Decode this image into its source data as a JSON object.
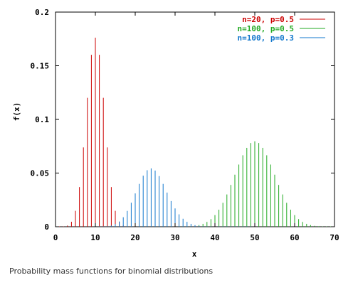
{
  "caption": "Probability mass functions for binomial distributions",
  "chart_data": {
    "type": "bar",
    "xlabel": "x",
    "ylabel": "f(x)",
    "xlim": [
      0,
      70
    ],
    "ylim": [
      0,
      0.2
    ],
    "x_ticks": [
      0,
      10,
      20,
      30,
      40,
      50,
      60,
      70
    ],
    "x_tick_labels": [
      "0",
      "10",
      "20",
      "30",
      "40",
      "50",
      "60",
      "70"
    ],
    "y_ticks": [
      0,
      0.05,
      0.1,
      0.15,
      0.2
    ],
    "y_tick_labels": [
      "0",
      "0.05",
      "0.1",
      "0.15",
      "0.2"
    ],
    "grid": false,
    "legend_position": "top-right",
    "series": [
      {
        "name": "n=20, p=0.5",
        "color": "#cc0000",
        "x": [
          0,
          1,
          2,
          3,
          4,
          5,
          6,
          7,
          8,
          9,
          10,
          11,
          12,
          13,
          14,
          15,
          16,
          17,
          18,
          19,
          20
        ],
        "values": [
          1e-06,
          1.9e-05,
          0.000181,
          0.001087,
          0.004621,
          0.014786,
          0.036964,
          0.073929,
          0.120134,
          0.160179,
          0.176197,
          0.160179,
          0.120134,
          0.073929,
          0.036964,
          0.014786,
          0.004621,
          0.001087,
          0.000181,
          1.9e-05,
          1e-06
        ]
      },
      {
        "name": "n=100, p=0.5",
        "color": "#22aa22",
        "x": [
          30,
          31,
          32,
          33,
          34,
          35,
          36,
          37,
          38,
          39,
          40,
          41,
          42,
          43,
          44,
          45,
          46,
          47,
          48,
          49,
          50,
          51,
          52,
          53,
          54,
          55,
          56,
          57,
          58,
          59,
          60,
          61,
          62,
          63,
          64,
          65,
          66,
          67,
          68,
          69,
          70
        ],
        "values": [
          2.3e-05,
          5.2e-05,
          0.000113,
          0.000232,
          0.000458,
          0.000864,
          0.00156,
          0.002698,
          0.004473,
          0.007111,
          0.010844,
          0.015869,
          0.022292,
          0.030069,
          0.038953,
          0.048474,
          0.057958,
          0.06659,
          0.073527,
          0.078029,
          0.079589,
          0.078029,
          0.073527,
          0.06659,
          0.057958,
          0.048474,
          0.038953,
          0.030069,
          0.022292,
          0.015869,
          0.010844,
          0.007111,
          0.004473,
          0.002698,
          0.00156,
          0.000864,
          0.000458,
          0.000232,
          0.000113,
          5.2e-05,
          2.3e-05
        ]
      },
      {
        "name": "n=100, p=0.3",
        "color": "#1177cc",
        "x": [
          10,
          11,
          12,
          13,
          14,
          15,
          16,
          17,
          18,
          19,
          20,
          21,
          22,
          23,
          24,
          25,
          26,
          27,
          28,
          29,
          30,
          31,
          32,
          33,
          34,
          35,
          36,
          37,
          38,
          39,
          40,
          41,
          42,
          43,
          44,
          45,
          46,
          47,
          48,
          49,
          50
        ],
        "values": [
          1.6e-05,
          5.6e-05,
          0.000169,
          0.000457,
          0.00111,
          0.002441,
          0.00488,
          0.008857,
          0.014758,
          0.022368,
          0.031043,
          0.039926,
          0.047556,
          0.052659,
          0.054318,
          0.052333,
          0.047179,
          0.039918,
          0.031811,
          0.023931,
          0.017056,
          0.011551,
          0.007442,
          0.00457,
          0.002681,
          0.001504,
          0.000807,
          0.000414,
          0.000204,
          9.6e-05,
          4.3e-05,
          1.9e-05,
          8e-06,
          3e-06,
          1e-06,
          0.0,
          0.0,
          0.0,
          0.0,
          0.0,
          0.0
        ]
      }
    ]
  }
}
